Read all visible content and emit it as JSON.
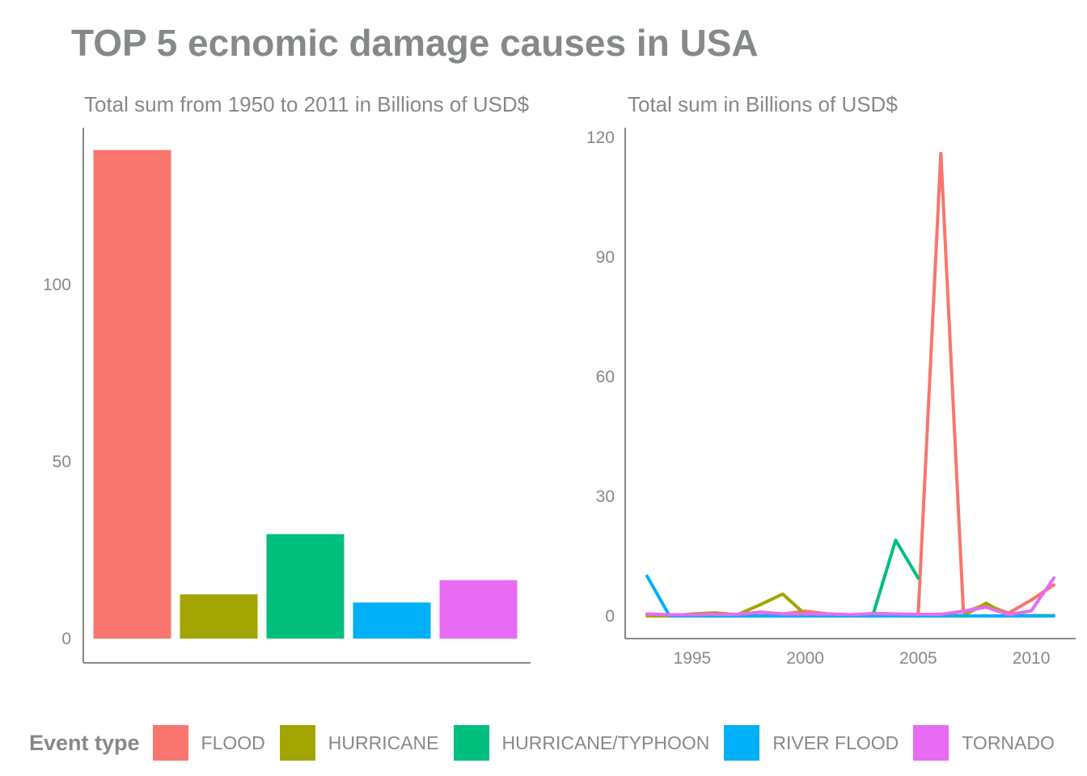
{
  "title": "TOP 5 ecnomic damage causes in USA",
  "legend": {
    "title": "Event type",
    "items": [
      {
        "label": "FLOOD",
        "color": "#F8766D"
      },
      {
        "label": "HURRICANE",
        "color": "#A3A500"
      },
      {
        "label": "HURRICANE/TYPHOON",
        "color": "#00BF7D"
      },
      {
        "label": "RIVER FLOOD",
        "color": "#00B0F6"
      },
      {
        "label": "TORNADO",
        "color": "#E76BF3"
      }
    ]
  },
  "chart_data": [
    {
      "type": "bar",
      "title": "Total sum from 1950 to 2011 in Billions of USD$",
      "xlabel": "",
      "ylabel": "",
      "categories": [
        "FLOOD",
        "HURRICANE",
        "HURRICANE/TYPHOON",
        "RIVER FLOOD",
        "TORNADO"
      ],
      "values": [
        138,
        12.5,
        29.5,
        10.2,
        16.5
      ],
      "colors": [
        "#F8766D",
        "#A3A500",
        "#00BF7D",
        "#00B0F6",
        "#E76BF3"
      ],
      "yticks": [
        0,
        50,
        100
      ],
      "ylim": [
        0,
        145
      ],
      "grid": false,
      "x_tick_labels_shown": false
    },
    {
      "type": "line",
      "title": "Total sum in Billions of USD$",
      "xlabel": "",
      "ylabel": "",
      "xticks": [
        1995,
        2000,
        2005,
        2010
      ],
      "yticks": [
        0,
        30,
        60,
        90,
        120
      ],
      "xlim": [
        1993,
        2011
      ],
      "ylim": [
        0,
        120
      ],
      "grid": false,
      "series": [
        {
          "name": "FLOOD",
          "color": "#F8766D",
          "x": [
            1993,
            1994,
            1995,
            1996,
            1997,
            1998,
            1999,
            2000,
            2001,
            2002,
            2003,
            2004,
            2005,
            2006,
            2007,
            2008,
            2009,
            2010,
            2011
          ],
          "y": [
            0.2,
            0.2,
            0.3,
            0.3,
            0.3,
            1.0,
            0.5,
            1.2,
            0.5,
            0.3,
            0.4,
            0.4,
            0.3,
            116,
            1.0,
            2.8,
            0.7,
            4.0,
            7.8
          ]
        },
        {
          "name": "HURRICANE",
          "color": "#A3A500",
          "x": [
            1993,
            1994,
            1995,
            1996,
            1997,
            1998,
            1999,
            2000,
            2001,
            2002,
            2003,
            2004,
            2005,
            2006,
            2007,
            2008,
            2009,
            2010,
            2011
          ],
          "y": [
            0,
            0,
            0.5,
            0.8,
            0.3,
            2.8,
            5.5,
            0.4,
            0.2,
            0.2,
            0.6,
            0.5,
            0.2,
            0.1,
            0.1,
            3.2,
            0.1,
            0.1,
            0.1
          ]
        },
        {
          "name": "HURRICANE/TYPHOON",
          "color": "#00BF7D",
          "x": [
            2003,
            2004,
            2005
          ],
          "y": [
            0.3,
            19.0,
            9.5
          ]
        },
        {
          "name": "RIVER FLOOD",
          "color": "#00B0F6",
          "x": [
            1993,
            1994,
            1995,
            1996,
            1997,
            1998,
            1999,
            2000,
            2001,
            2002,
            2003,
            2004,
            2005,
            2006,
            2007,
            2008,
            2009,
            2010,
            2011
          ],
          "y": [
            10,
            0,
            0,
            0,
            0,
            0,
            0,
            0,
            0,
            0,
            0,
            0,
            0,
            0,
            0,
            0,
            0,
            0,
            0
          ]
        },
        {
          "name": "TORNADO",
          "color": "#E76BF3",
          "x": [
            1993,
            1994,
            1995,
            1996,
            1997,
            1998,
            1999,
            2000,
            2001,
            2002,
            2003,
            2004,
            2005,
            2006,
            2007,
            2008,
            2009,
            2010,
            2011
          ],
          "y": [
            0.5,
            0.3,
            0.3,
            0.4,
            0.4,
            0.9,
            0.5,
            0.5,
            0.5,
            0.3,
            0.6,
            0.5,
            0.4,
            0.4,
            1.2,
            2.2,
            0.3,
            1.3,
            9.5
          ]
        }
      ]
    }
  ]
}
